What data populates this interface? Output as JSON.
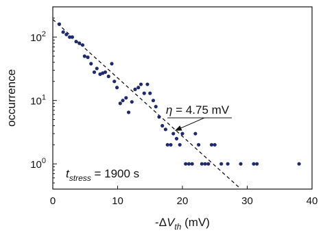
{
  "chart_data": {
    "type": "scatter",
    "xlabel": {
      "prefix": "-Δ",
      "var": "V",
      "sub": "th",
      "unit": " (mV)"
    },
    "ylabel": "occurrence",
    "xlim": [
      0,
      40
    ],
    "ylim": [
      0.4,
      300
    ],
    "yscale": "log",
    "xticks": [
      0,
      10,
      20,
      30,
      40
    ],
    "xtick_labels": [
      "0",
      "10",
      "20",
      "30",
      "40"
    ],
    "yticks": [
      1,
      10,
      100
    ],
    "ytick_labels": [
      {
        "base": "10",
        "exp": "0"
      },
      {
        "base": "10",
        "exp": "1"
      },
      {
        "base": "10",
        "exp": "2"
      }
    ],
    "point_color": "#1f2a6b",
    "series": [
      {
        "points": [
          [
            1.0,
            160
          ],
          [
            1.6,
            120
          ],
          [
            2.1,
            110
          ],
          [
            2.6,
            100
          ],
          [
            3.0,
            100
          ],
          [
            3.6,
            85
          ],
          [
            4.1,
            80
          ],
          [
            4.6,
            75
          ],
          [
            4.9,
            50
          ],
          [
            5.4,
            48
          ],
          [
            5.9,
            38
          ],
          [
            6.4,
            28
          ],
          [
            6.8,
            32
          ],
          [
            7.3,
            26
          ],
          [
            7.7,
            27
          ],
          [
            8.1,
            28
          ],
          [
            8.6,
            24
          ],
          [
            9.1,
            38
          ],
          [
            9.5,
            20
          ],
          [
            9.9,
            16
          ],
          [
            10.4,
            9
          ],
          [
            10.8,
            10
          ],
          [
            11.3,
            11
          ],
          [
            11.7,
            6.5
          ],
          [
            12.2,
            9.5
          ],
          [
            12.7,
            15
          ],
          [
            13.2,
            16
          ],
          [
            13.6,
            18
          ],
          [
            14.1,
            13
          ],
          [
            14.6,
            18
          ],
          [
            15.0,
            13
          ],
          [
            15.5,
            10
          ],
          [
            15.9,
            8
          ],
          [
            16.4,
            5.5
          ],
          [
            16.9,
            4
          ],
          [
            17.4,
            3.5
          ],
          [
            17.7,
            2
          ],
          [
            18.2,
            2
          ],
          [
            18.6,
            3
          ],
          [
            19.1,
            2.5
          ],
          [
            19.6,
            2
          ],
          [
            20.0,
            3
          ],
          [
            20.5,
            1
          ],
          [
            21.0,
            1
          ],
          [
            21.5,
            1
          ],
          [
            22.0,
            3
          ],
          [
            22.5,
            2
          ],
          [
            23.0,
            1
          ],
          [
            23.5,
            1
          ],
          [
            24.0,
            1
          ],
          [
            24.5,
            2
          ],
          [
            25.0,
            2
          ],
          [
            26.0,
            1
          ],
          [
            27.0,
            1
          ],
          [
            29.0,
            1
          ],
          [
            31.0,
            1
          ],
          [
            31.5,
            1
          ],
          [
            38.0,
            1
          ]
        ]
      }
    ],
    "fit_line": {
      "style": "dashed",
      "from": [
        0,
        190
      ],
      "to": [
        28.8,
        0.42
      ]
    },
    "annotations": {
      "eta": {
        "symbol": "η",
        "text": " = 4.75 mV",
        "arrow_tip": [
          18.6,
          2.9
        ]
      },
      "stress": {
        "var": "t",
        "sub": "stress",
        "text": " = 1900 s"
      }
    }
  }
}
